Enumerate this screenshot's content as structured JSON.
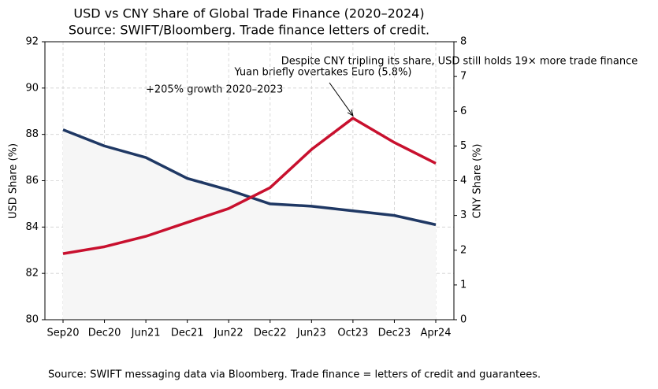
{
  "chart_data": {
    "type": "line",
    "title": "USD vs CNY Share of Global Trade Finance (2020–2024)",
    "subtitle": "Source: SWIFT/Bloomberg. Trade finance letters of credit.",
    "categories": [
      "Sep20",
      "Dec20",
      "Jun21",
      "Dec21",
      "Jun22",
      "Dec22",
      "Jun23",
      "Oct23",
      "Dec23",
      "Apr24"
    ],
    "series": [
      {
        "color": "#1f3864",
        "values": [
          88.2,
          87.5,
          87.0,
          86.1,
          85.6,
          85.0,
          84.9,
          84.7,
          84.5,
          84.1
        ],
        "fill": "#f6f6f6"
      },
      {
        "color": "#c8102e",
        "axis": "y2",
        "values": [
          1.9,
          2.1,
          2.4,
          2.8,
          3.2,
          3.8,
          4.9,
          5.8,
          5.1,
          4.5
        ]
      }
    ],
    "ylabel": "USD Share (%)",
    "y2label": "CNY Share (%)",
    "ylim": [
      80,
      92
    ],
    "yticks": [
      80,
      82,
      84,
      86,
      88,
      90,
      92
    ],
    "y2lim": [
      0,
      8
    ],
    "y2ticks": [
      0,
      1,
      2,
      3,
      4,
      5,
      6,
      7,
      8
    ],
    "grid": true,
    "annotations": [
      "+205% growth 2020–2023",
      "Yuan briefly overtakes Euro (5.8%)",
      "Despite CNY tripling its share, USD still holds 19× more trade finance"
    ],
    "footer": "Source: SWIFT messaging data via Bloomberg. Trade finance = letters of credit and guarantees."
  }
}
